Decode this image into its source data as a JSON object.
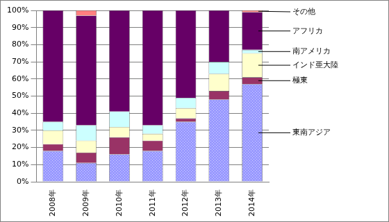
{
  "chart_data": {
    "type": "bar",
    "stacked": true,
    "grid": true,
    "legend": "right",
    "categories": [
      "2008年",
      "2009年",
      "2010年",
      "2011年",
      "2012年",
      "2013年",
      "2014年"
    ],
    "series": [
      {
        "name": "東南アジア",
        "color": "#9999ff",
        "values": [
          18,
          11,
          16,
          18,
          35,
          48,
          57
        ]
      },
      {
        "name": "極東",
        "color": "#993366",
        "values": [
          4,
          6,
          10,
          6,
          2,
          5,
          4
        ]
      },
      {
        "name": "インド亜大陸",
        "color": "#ffffcc",
        "values": [
          8,
          7,
          6,
          4,
          6,
          10,
          14
        ]
      },
      {
        "name": "南アメリカ",
        "color": "#ccffff",
        "values": [
          5,
          9,
          9,
          5,
          6,
          7,
          2
        ]
      },
      {
        "name": "アフリカ",
        "color": "#660066",
        "values": [
          65,
          64,
          59,
          67,
          51,
          30,
          22
        ]
      },
      {
        "name": "その他",
        "color": "#ff8080",
        "values": [
          0,
          3,
          0,
          0,
          0,
          0,
          1
        ]
      }
    ],
    "ylim": [
      0,
      100
    ],
    "yticks": [
      {
        "value": 0,
        "label": "0%"
      },
      {
        "value": 10,
        "label": "10%"
      },
      {
        "value": 20,
        "label": "20%"
      },
      {
        "value": 30,
        "label": "30%"
      },
      {
        "value": 40,
        "label": "40%"
      },
      {
        "value": 50,
        "label": "50%"
      },
      {
        "value": 60,
        "label": "60%"
      },
      {
        "value": 70,
        "label": "70%"
      },
      {
        "value": 80,
        "label": "80%"
      },
      {
        "value": 90,
        "label": "90%"
      },
      {
        "value": 100,
        "label": "100%"
      }
    ]
  }
}
